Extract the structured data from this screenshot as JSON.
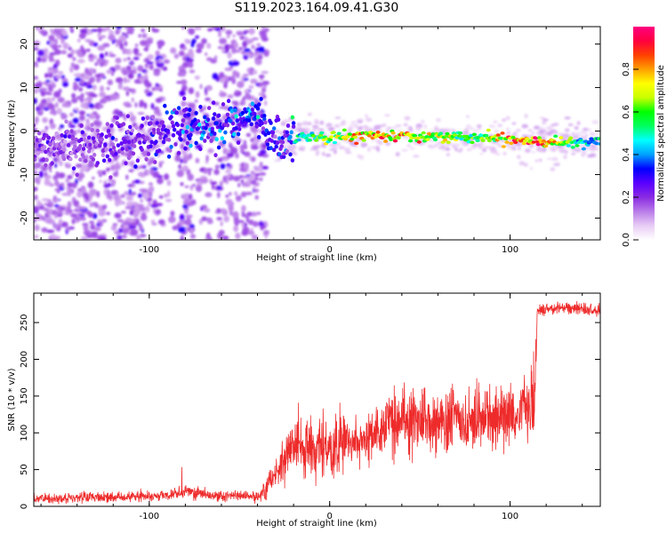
{
  "page_title": "S119.2023.164.09.41.G30",
  "colors": {
    "snr_line": "#ee2b2b",
    "colormap": [
      "#ffffff",
      "#e8ccf5",
      "#b97ce9",
      "#8a2be2",
      "#5a00ff",
      "#0000ff",
      "#00a0ff",
      "#00ffff",
      "#00ff60",
      "#00ff00",
      "#c8ff00",
      "#ffff00",
      "#ffa000",
      "#ff4000",
      "#ff0040",
      "#ff0080"
    ]
  },
  "chart_data": [
    {
      "type": "heatmap",
      "title": "",
      "xlabel": "Height of straight line (km)",
      "ylabel": "Frequency (Hz)",
      "xlim": [
        -164,
        150
      ],
      "ylim": [
        -25,
        24
      ],
      "x_ticks": [
        "-100",
        "0",
        "100"
      ],
      "x_tick_values": [
        -100,
        0,
        100
      ],
      "y_ticks": [
        "-20",
        "-10",
        "0",
        "10",
        "20"
      ],
      "y_tick_values": [
        -20,
        -10,
        0,
        10,
        20
      ],
      "colorbar": {
        "label": "Normalized spectral amplitude",
        "range": [
          0,
          1
        ],
        "ticks": [
          "0.0",
          "0.2",
          "0.4",
          "0.6",
          "0.8"
        ],
        "tick_values": [
          0,
          0.2,
          0.4,
          0.6,
          0.8
        ]
      },
      "ridge": [
        {
          "x": -140,
          "f": -4,
          "amp": 0.25
        },
        {
          "x": -100,
          "f": -2,
          "amp": 0.3
        },
        {
          "x": -85,
          "f": 1,
          "amp": 0.38
        },
        {
          "x": -55,
          "f": 2,
          "amp": 0.42
        },
        {
          "x": -40,
          "f": 4,
          "amp": 0.45
        },
        {
          "x": -30,
          "f": -3,
          "amp": 0.3
        },
        {
          "x": -15,
          "f": -1,
          "amp": 0.55
        },
        {
          "x": 0,
          "f": -1.5,
          "amp": 0.7
        },
        {
          "x": 20,
          "f": -1,
          "amp": 0.9
        },
        {
          "x": 50,
          "f": -1.2,
          "amp": 0.85
        },
        {
          "x": 80,
          "f": -1.5,
          "amp": 0.6
        },
        {
          "x": 100,
          "f": -2,
          "amp": 0.9
        },
        {
          "x": 118,
          "f": -2.5,
          "amp": 0.95
        },
        {
          "x": 140,
          "f": -2.5,
          "amp": 0.5
        }
      ]
    },
    {
      "type": "line",
      "title": "",
      "xlabel": "Height of straight line (km)",
      "ylabel": "SNR (10 * v/v)",
      "xlim": [
        -164,
        150
      ],
      "ylim": [
        0,
        290
      ],
      "x_ticks": [
        "-100",
        "0",
        "100"
      ],
      "x_tick_values": [
        -100,
        0,
        100
      ],
      "y_ticks": [
        "0",
        "50",
        "100",
        "150",
        "200",
        "250"
      ],
      "y_tick_values": [
        0,
        50,
        100,
        150,
        200,
        250
      ],
      "series": [
        {
          "x": [
            -164,
            -150,
            -130,
            -110,
            -90,
            -80,
            -70,
            -60,
            -50,
            -40,
            -35,
            -30,
            -25,
            -20,
            -15,
            -10,
            -5,
            0,
            10,
            20,
            30,
            40,
            50,
            60,
            70,
            80,
            90,
            100,
            105,
            110,
            114,
            115,
            120,
            130,
            140,
            150
          ],
          "values": [
            10,
            11,
            12,
            13,
            15,
            20,
            16,
            14,
            14,
            12,
            25,
            45,
            65,
            75,
            80,
            75,
            80,
            75,
            85,
            95,
            110,
            115,
            115,
            118,
            118,
            120,
            120,
            122,
            125,
            138,
            140,
            265,
            268,
            270,
            268,
            265
          ]
        }
      ]
    }
  ]
}
